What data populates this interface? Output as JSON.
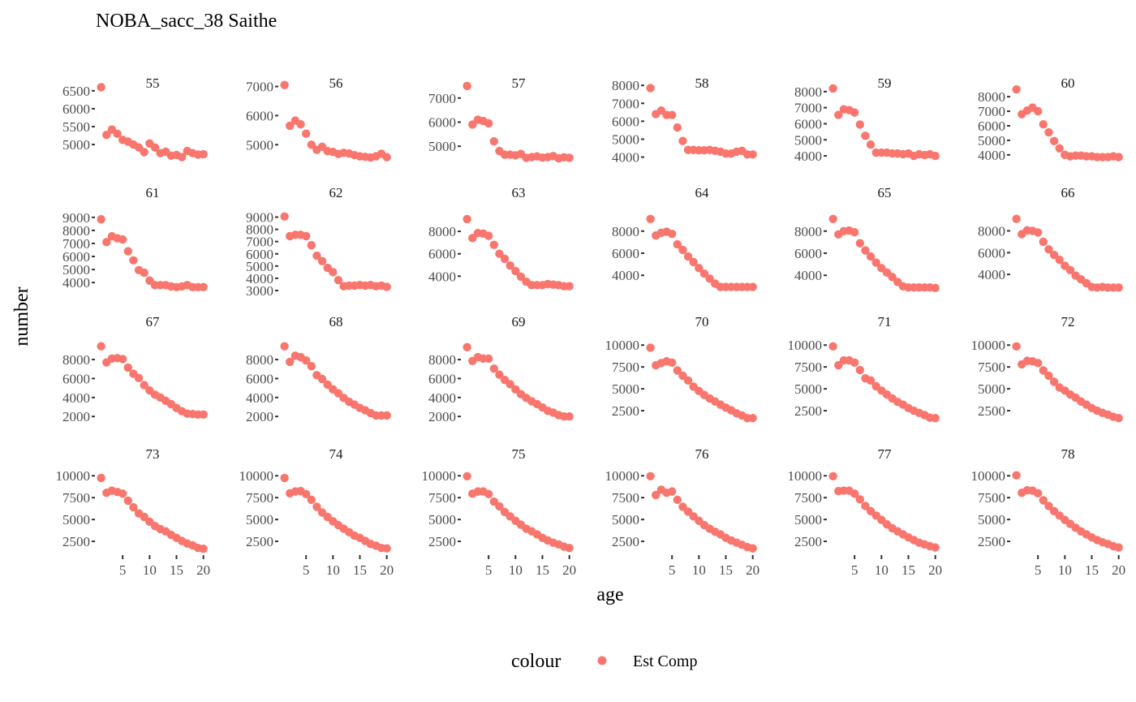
{
  "chart_data": {
    "type": "scatter",
    "title": "NOBA_sacc_38 Saithe",
    "xlabel": "age",
    "ylabel": "number",
    "legend": {
      "title": "colour",
      "entries": [
        "Est Comp"
      ],
      "position": "bottom"
    },
    "point_color": "#F8766D",
    "x": [
      1,
      2,
      3,
      4,
      5,
      6,
      7,
      8,
      9,
      10,
      11,
      12,
      13,
      14,
      15,
      16,
      17,
      18,
      19,
      20
    ],
    "xlim": [
      0,
      20.5
    ],
    "x_ticks": [
      5,
      10,
      15,
      20
    ],
    "panels": [
      {
        "label": "55",
        "ylim": [
          4550,
          6700
        ],
        "y_ticks": [
          5000,
          5500,
          6000,
          6500
        ],
        "values": [
          6600,
          5270,
          5420,
          5300,
          5130,
          5080,
          5000,
          4920,
          4790,
          5030,
          4920,
          4760,
          4800,
          4690,
          4710,
          4650,
          4820,
          4760,
          4720,
          4730
        ]
      },
      {
        "label": "56",
        "ylim": [
          4450,
          7100
        ],
        "y_ticks": [
          5000,
          6000,
          7000
        ],
        "values": [
          7050,
          5650,
          5830,
          5700,
          5380,
          5000,
          4820,
          4930,
          4780,
          4750,
          4680,
          4720,
          4700,
          4640,
          4600,
          4580,
          4560,
          4600,
          4690,
          4570
        ]
      },
      {
        "label": "57",
        "ylim": [
          4400,
          7600
        ],
        "y_ticks": [
          5000,
          6000,
          7000
        ],
        "values": [
          7500,
          5900,
          6100,
          6050,
          5950,
          5200,
          4800,
          4650,
          4650,
          4620,
          4680,
          4520,
          4550,
          4580,
          4530,
          4550,
          4590,
          4500,
          4540,
          4520
        ]
      },
      {
        "label": "58",
        "ylim": [
          3800,
          8100
        ],
        "y_ticks": [
          4000,
          5000,
          6000,
          7000,
          8000
        ],
        "values": [
          7850,
          6400,
          6600,
          6350,
          6350,
          5650,
          4900,
          4400,
          4400,
          4380,
          4380,
          4400,
          4350,
          4300,
          4200,
          4200,
          4300,
          4350,
          4150,
          4150
        ]
      },
      {
        "label": "59",
        "ylim": [
          3700,
          8500
        ],
        "y_ticks": [
          4000,
          5000,
          6000,
          7000,
          8000
        ],
        "values": [
          8200,
          6550,
          6900,
          6850,
          6700,
          5950,
          5250,
          4700,
          4200,
          4200,
          4200,
          4150,
          4150,
          4100,
          4150,
          4000,
          4100,
          4050,
          4100,
          4000
        ]
      },
      {
        "label": "60",
        "ylim": [
          3600,
          8900
        ],
        "y_ticks": [
          4000,
          5000,
          6000,
          7000,
          8000
        ],
        "values": [
          8500,
          6800,
          7050,
          7250,
          7000,
          6100,
          5550,
          4950,
          4450,
          4000,
          3900,
          3950,
          3950,
          3900,
          3900,
          3850,
          3850,
          3850,
          3900,
          3850
        ]
      },
      {
        "label": "61",
        "ylim": [
          3200,
          9300
        ],
        "y_ticks": [
          4000,
          5000,
          6000,
          7000,
          8000,
          9000
        ],
        "values": [
          8850,
          7100,
          7550,
          7400,
          7300,
          6400,
          5700,
          4950,
          4750,
          4150,
          3800,
          3800,
          3800,
          3700,
          3650,
          3700,
          3800,
          3650,
          3650,
          3650
        ]
      },
      {
        "label": "62",
        "ylim": [
          2800,
          9300
        ],
        "y_ticks": [
          3000,
          4000,
          5000,
          6000,
          7000,
          8000,
          9000
        ],
        "values": [
          9050,
          7450,
          7550,
          7550,
          7450,
          6700,
          5850,
          5400,
          4850,
          4500,
          3850,
          3350,
          3400,
          3400,
          3450,
          3400,
          3450,
          3350,
          3400,
          3300
        ]
      },
      {
        "label": "63",
        "ylim": [
          2500,
          9600
        ],
        "y_ticks": [
          4000,
          6000,
          8000
        ],
        "values": [
          9100,
          7400,
          7850,
          7800,
          7600,
          6800,
          6000,
          5550,
          4950,
          4450,
          3950,
          3500,
          3200,
          3200,
          3200,
          3300,
          3250,
          3200,
          3100,
          3100
        ]
      },
      {
        "label": "64",
        "ylim": [
          2400,
          9600
        ],
        "y_ticks": [
          4000,
          6000,
          8000
        ],
        "values": [
          9100,
          7600,
          7850,
          7950,
          7750,
          6800,
          6300,
          5700,
          5200,
          4650,
          4150,
          3700,
          3250,
          2950,
          2950,
          2950,
          2950,
          2950,
          2950,
          2950
        ]
      },
      {
        "label": "65",
        "ylim": [
          2400,
          9600
        ],
        "y_ticks": [
          4000,
          6000,
          8000
        ],
        "values": [
          9100,
          7700,
          8000,
          8050,
          7900,
          6900,
          6250,
          5700,
          5150,
          4650,
          4250,
          3850,
          3400,
          3000,
          2900,
          2900,
          2900,
          2900,
          2900,
          2850
        ]
      },
      {
        "label": "66",
        "ylim": [
          2300,
          9600
        ],
        "y_ticks": [
          4000,
          6000,
          8000
        ],
        "values": [
          9100,
          7700,
          8050,
          8000,
          7850,
          7000,
          6300,
          5800,
          5350,
          4800,
          4400,
          3900,
          3550,
          3200,
          2850,
          2800,
          2850,
          2800,
          2800,
          2800
        ]
      },
      {
        "label": "67",
        "ylim": [
          1500,
          9800
        ],
        "y_ticks": [
          2000,
          4000,
          6000,
          8000
        ],
        "values": [
          9400,
          7700,
          8100,
          8150,
          8050,
          7150,
          6500,
          6050,
          5300,
          4750,
          4300,
          4000,
          3650,
          3300,
          2900,
          2550,
          2300,
          2250,
          2200,
          2200
        ]
      },
      {
        "label": "68",
        "ylim": [
          1500,
          9800
        ],
        "y_ticks": [
          2000,
          4000,
          6000,
          8000
        ],
        "values": [
          9400,
          7750,
          8400,
          8250,
          7900,
          7300,
          6350,
          5950,
          5350,
          4850,
          4450,
          3950,
          3550,
          3250,
          2900,
          2650,
          2350,
          2100,
          2100,
          2100
        ]
      },
      {
        "label": "69",
        "ylim": [
          1500,
          9800
        ],
        "y_ticks": [
          2000,
          4000,
          6000,
          8000
        ],
        "values": [
          9300,
          7850,
          8250,
          8100,
          8100,
          7050,
          6400,
          5850,
          5400,
          4850,
          4350,
          3950,
          3600,
          3300,
          2950,
          2600,
          2400,
          2150,
          2000,
          2000
        ]
      },
      {
        "label": "70",
        "ylim": [
          1300,
          10300
        ],
        "y_ticks": [
          2500,
          5000,
          7500,
          10000
        ],
        "values": [
          9700,
          7700,
          7950,
          8150,
          8000,
          7100,
          6500,
          5950,
          5250,
          4750,
          4300,
          3900,
          3550,
          3200,
          2850,
          2550,
          2200,
          1950,
          1650,
          1650
        ]
      },
      {
        "label": "71",
        "ylim": [
          1300,
          10300
        ],
        "y_ticks": [
          2500,
          5000,
          7500,
          10000
        ],
        "values": [
          9850,
          7700,
          8250,
          8250,
          8000,
          7150,
          6200,
          5950,
          5300,
          4800,
          4350,
          3900,
          3500,
          3200,
          2800,
          2500,
          2250,
          2000,
          1700,
          1650
        ]
      },
      {
        "label": "72",
        "ylim": [
          1300,
          10300
        ],
        "y_ticks": [
          2500,
          5000,
          7500,
          10000
        ],
        "values": [
          9850,
          7800,
          8200,
          8150,
          7950,
          7100,
          6500,
          5800,
          5150,
          4800,
          4350,
          4000,
          3550,
          3200,
          2800,
          2500,
          2250,
          2050,
          1800,
          1650
        ]
      },
      {
        "label": "73",
        "ylim": [
          1300,
          10300
        ],
        "y_ticks": [
          2500,
          5000,
          7500,
          10000
        ],
        "values": [
          9750,
          8050,
          8300,
          8150,
          7950,
          7150,
          6400,
          5700,
          5300,
          4750,
          4250,
          3900,
          3650,
          3250,
          2900,
          2550,
          2250,
          2050,
          1750,
          1650
        ]
      },
      {
        "label": "74",
        "ylim": [
          1300,
          10300
        ],
        "y_ticks": [
          2500,
          5000,
          7500,
          10000
        ],
        "values": [
          9750,
          8000,
          8200,
          8250,
          7900,
          7250,
          6450,
          5800,
          5300,
          4800,
          4350,
          3950,
          3550,
          3150,
          2900,
          2550,
          2200,
          2000,
          1750,
          1700
        ]
      },
      {
        "label": "75",
        "ylim": [
          1300,
          10300
        ],
        "y_ticks": [
          2500,
          5000,
          7500,
          10000
        ],
        "values": [
          9950,
          7950,
          8200,
          8200,
          7900,
          7050,
          6500,
          5850,
          5350,
          4850,
          4400,
          3950,
          3650,
          3300,
          2900,
          2600,
          2350,
          2150,
          1900,
          1750
        ]
      },
      {
        "label": "76",
        "ylim": [
          1300,
          10300
        ],
        "y_ticks": [
          2500,
          5000,
          7500,
          10000
        ],
        "values": [
          9950,
          7800,
          8400,
          8050,
          8200,
          7250,
          6450,
          5900,
          5350,
          4850,
          4350,
          3950,
          3600,
          3300,
          2900,
          2600,
          2350,
          2100,
          1850,
          1700
        ]
      },
      {
        "label": "77",
        "ylim": [
          1300,
          10300
        ],
        "y_ticks": [
          2500,
          5000,
          7500,
          10000
        ],
        "values": [
          9950,
          8250,
          8300,
          8300,
          7950,
          7300,
          6550,
          5950,
          5450,
          4950,
          4450,
          4000,
          3650,
          3300,
          2950,
          2650,
          2350,
          2150,
          1950,
          1800
        ]
      },
      {
        "label": "78",
        "ylim": [
          1300,
          10300
        ],
        "y_ticks": [
          2500,
          5000,
          7500,
          10000
        ],
        "values": [
          10050,
          8050,
          8350,
          8300,
          8000,
          7200,
          6550,
          5950,
          5450,
          4950,
          4500,
          4050,
          3650,
          3300,
          2950,
          2650,
          2400,
          2200,
          1950,
          1800
        ]
      }
    ]
  }
}
